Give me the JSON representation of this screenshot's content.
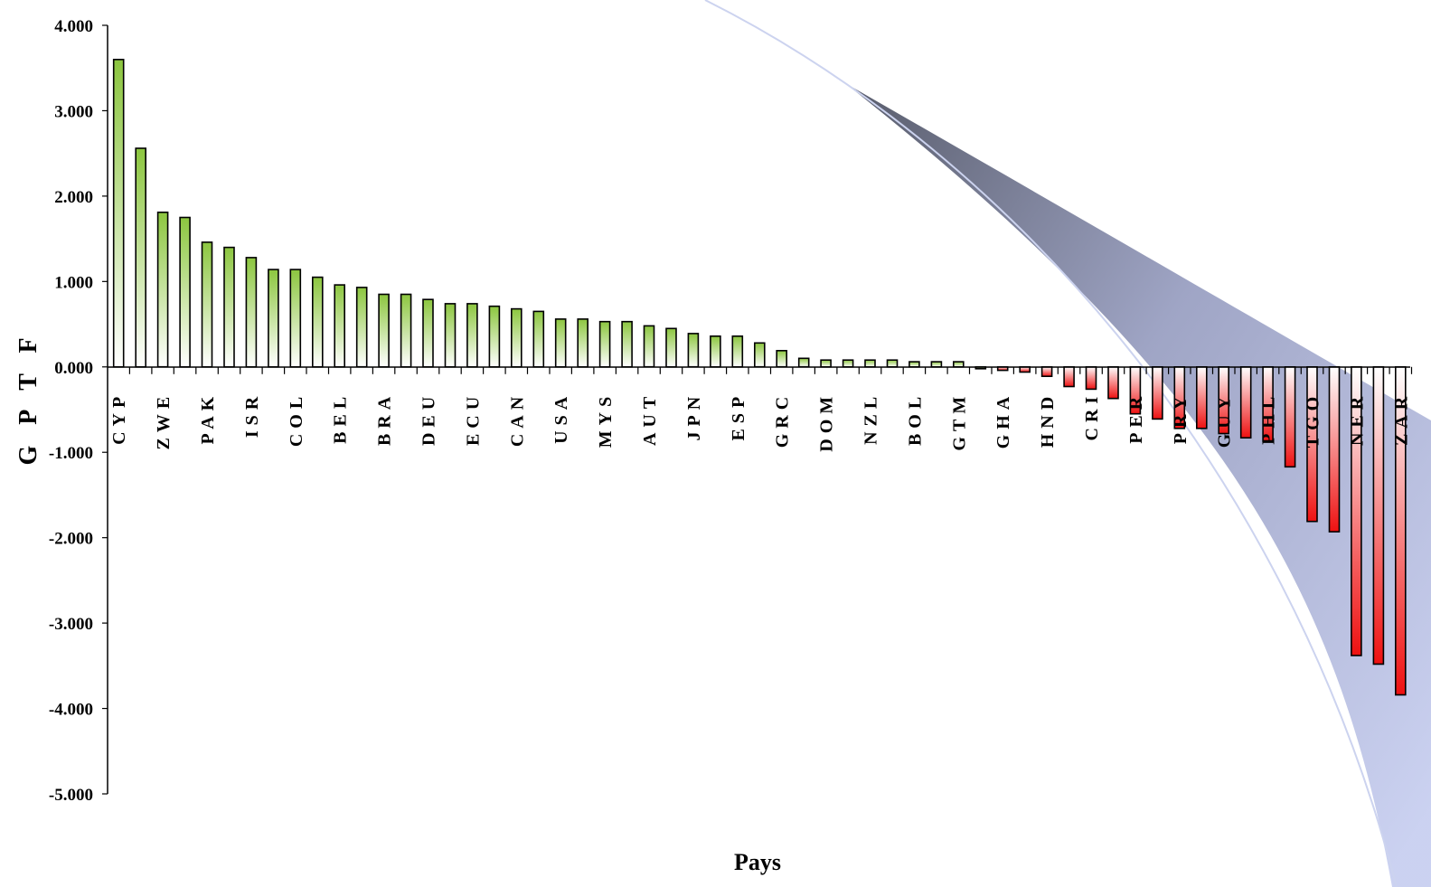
{
  "chart_data": {
    "type": "bar",
    "title": "",
    "xlabel": "Pays",
    "ylabel": "G P T F",
    "ylim": [
      -5,
      4
    ],
    "yticks": [
      4,
      3,
      2,
      1,
      0,
      -1,
      -2,
      -3,
      -4,
      -5
    ],
    "ytick_labels": [
      "4.000",
      "3.000",
      "2.000",
      "1.000",
      "0.000",
      "-1.000",
      "-2.000",
      "-3.000",
      "-4.000",
      "-5.000"
    ],
    "grid": false,
    "legend": "none",
    "colors": {
      "positive": "#8cc63f",
      "negative": "#ee1111",
      "stroke": "#000000",
      "swoosh_dark": "#5e6274",
      "swoosh_light": "#c4cbea"
    },
    "labeled_categories": [
      "CYP",
      "ZWE",
      "PAK",
      "ISR",
      "COL",
      "BEL",
      "BRA",
      "DEU",
      "ECU",
      "CAN",
      "USA",
      "MYS",
      "AUT",
      "JPN",
      "ESP",
      "GRC",
      "DOM",
      "NZL",
      "BOL",
      "GTM",
      "GHA",
      "HND",
      "CRI",
      "PER",
      "PRY",
      "GUY",
      "PHL",
      "TGO",
      "NER",
      "ZAR"
    ],
    "values": [
      3.6,
      2.56,
      1.81,
      1.75,
      1.46,
      1.4,
      1.28,
      1.14,
      1.14,
      1.05,
      0.96,
      0.93,
      0.85,
      0.85,
      0.79,
      0.74,
      0.74,
      0.71,
      0.68,
      0.65,
      0.56,
      0.56,
      0.53,
      0.53,
      0.48,
      0.45,
      0.39,
      0.36,
      0.36,
      0.28,
      0.19,
      0.1,
      0.08,
      0.08,
      0.08,
      0.08,
      0.06,
      0.06,
      0.06,
      0.0,
      -0.04,
      -0.06,
      -0.11,
      -0.23,
      -0.26,
      -0.37,
      -0.55,
      -0.61,
      -0.72,
      -0.72,
      -0.78,
      -0.83,
      -0.87,
      -1.17,
      -1.81,
      -1.93,
      -3.38,
      -3.48,
      -3.84
    ]
  }
}
